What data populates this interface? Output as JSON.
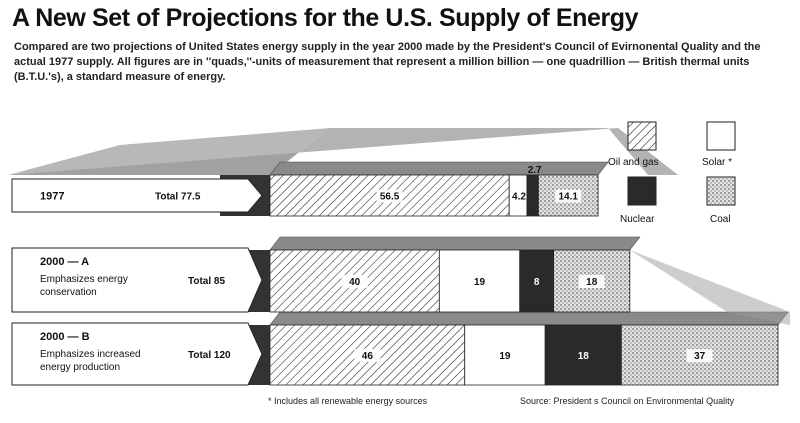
{
  "title": "A New Set of Projections for the U.S. Supply of Energy",
  "subtitle": "Compared are two projections of United States energy supply in the year 2000 made by the President's Council of Evirnonental Quality and the actual 1977 supply. All figures are in ''quads,''-units of measurement that represent a million billion — one quadrillion — British thermal units (B.T.U.'s), a standard measure of energy.",
  "footnote": "* Includes all renewable energy sources",
  "source": "Source: President s Council on Environmental Quality",
  "colors": {
    "oil_and_gas": "#ffffff",
    "solar": "#ffffff",
    "nuclear": "#2a2a2a",
    "coal": "#d8d8d8",
    "slab_top": "#8a8a8a",
    "slab_side": "#333333"
  },
  "chart_data": {
    "type": "bar",
    "stacked": true,
    "orientation": "horizontal",
    "categories": [
      "1977",
      "2000 — A",
      "2000 — B"
    ],
    "category_descriptions": [
      "",
      "Emphasizes energy conservation",
      "Emphasizes increased energy production"
    ],
    "total_labels": [
      "Total 77.5",
      "Total 85",
      "Total 120"
    ],
    "totals": [
      77.5,
      85,
      120
    ],
    "series": [
      {
        "name": "Oil and gas",
        "values": [
          56.5,
          40,
          46
        ],
        "pattern": "hatch"
      },
      {
        "name": "Solar *",
        "values": [
          4.2,
          19,
          19
        ],
        "pattern": "solid-white"
      },
      {
        "name": "Nuclear",
        "values": [
          2.7,
          8,
          18
        ],
        "pattern": "solid-black"
      },
      {
        "name": "Coal",
        "values": [
          14.1,
          18,
          37
        ],
        "pattern": "stipple"
      }
    ],
    "data_labels": [
      [
        "56.5",
        "4.2",
        "2.7",
        "14.1"
      ],
      [
        "40",
        "19",
        "8",
        "18"
      ],
      [
        "46",
        "19",
        "18",
        "37"
      ]
    ],
    "legend": {
      "position": "top-right",
      "items": [
        "Oil and gas",
        "Solar *",
        "Nuclear",
        "Coal"
      ]
    },
    "xlim": [
      0,
      120
    ]
  }
}
